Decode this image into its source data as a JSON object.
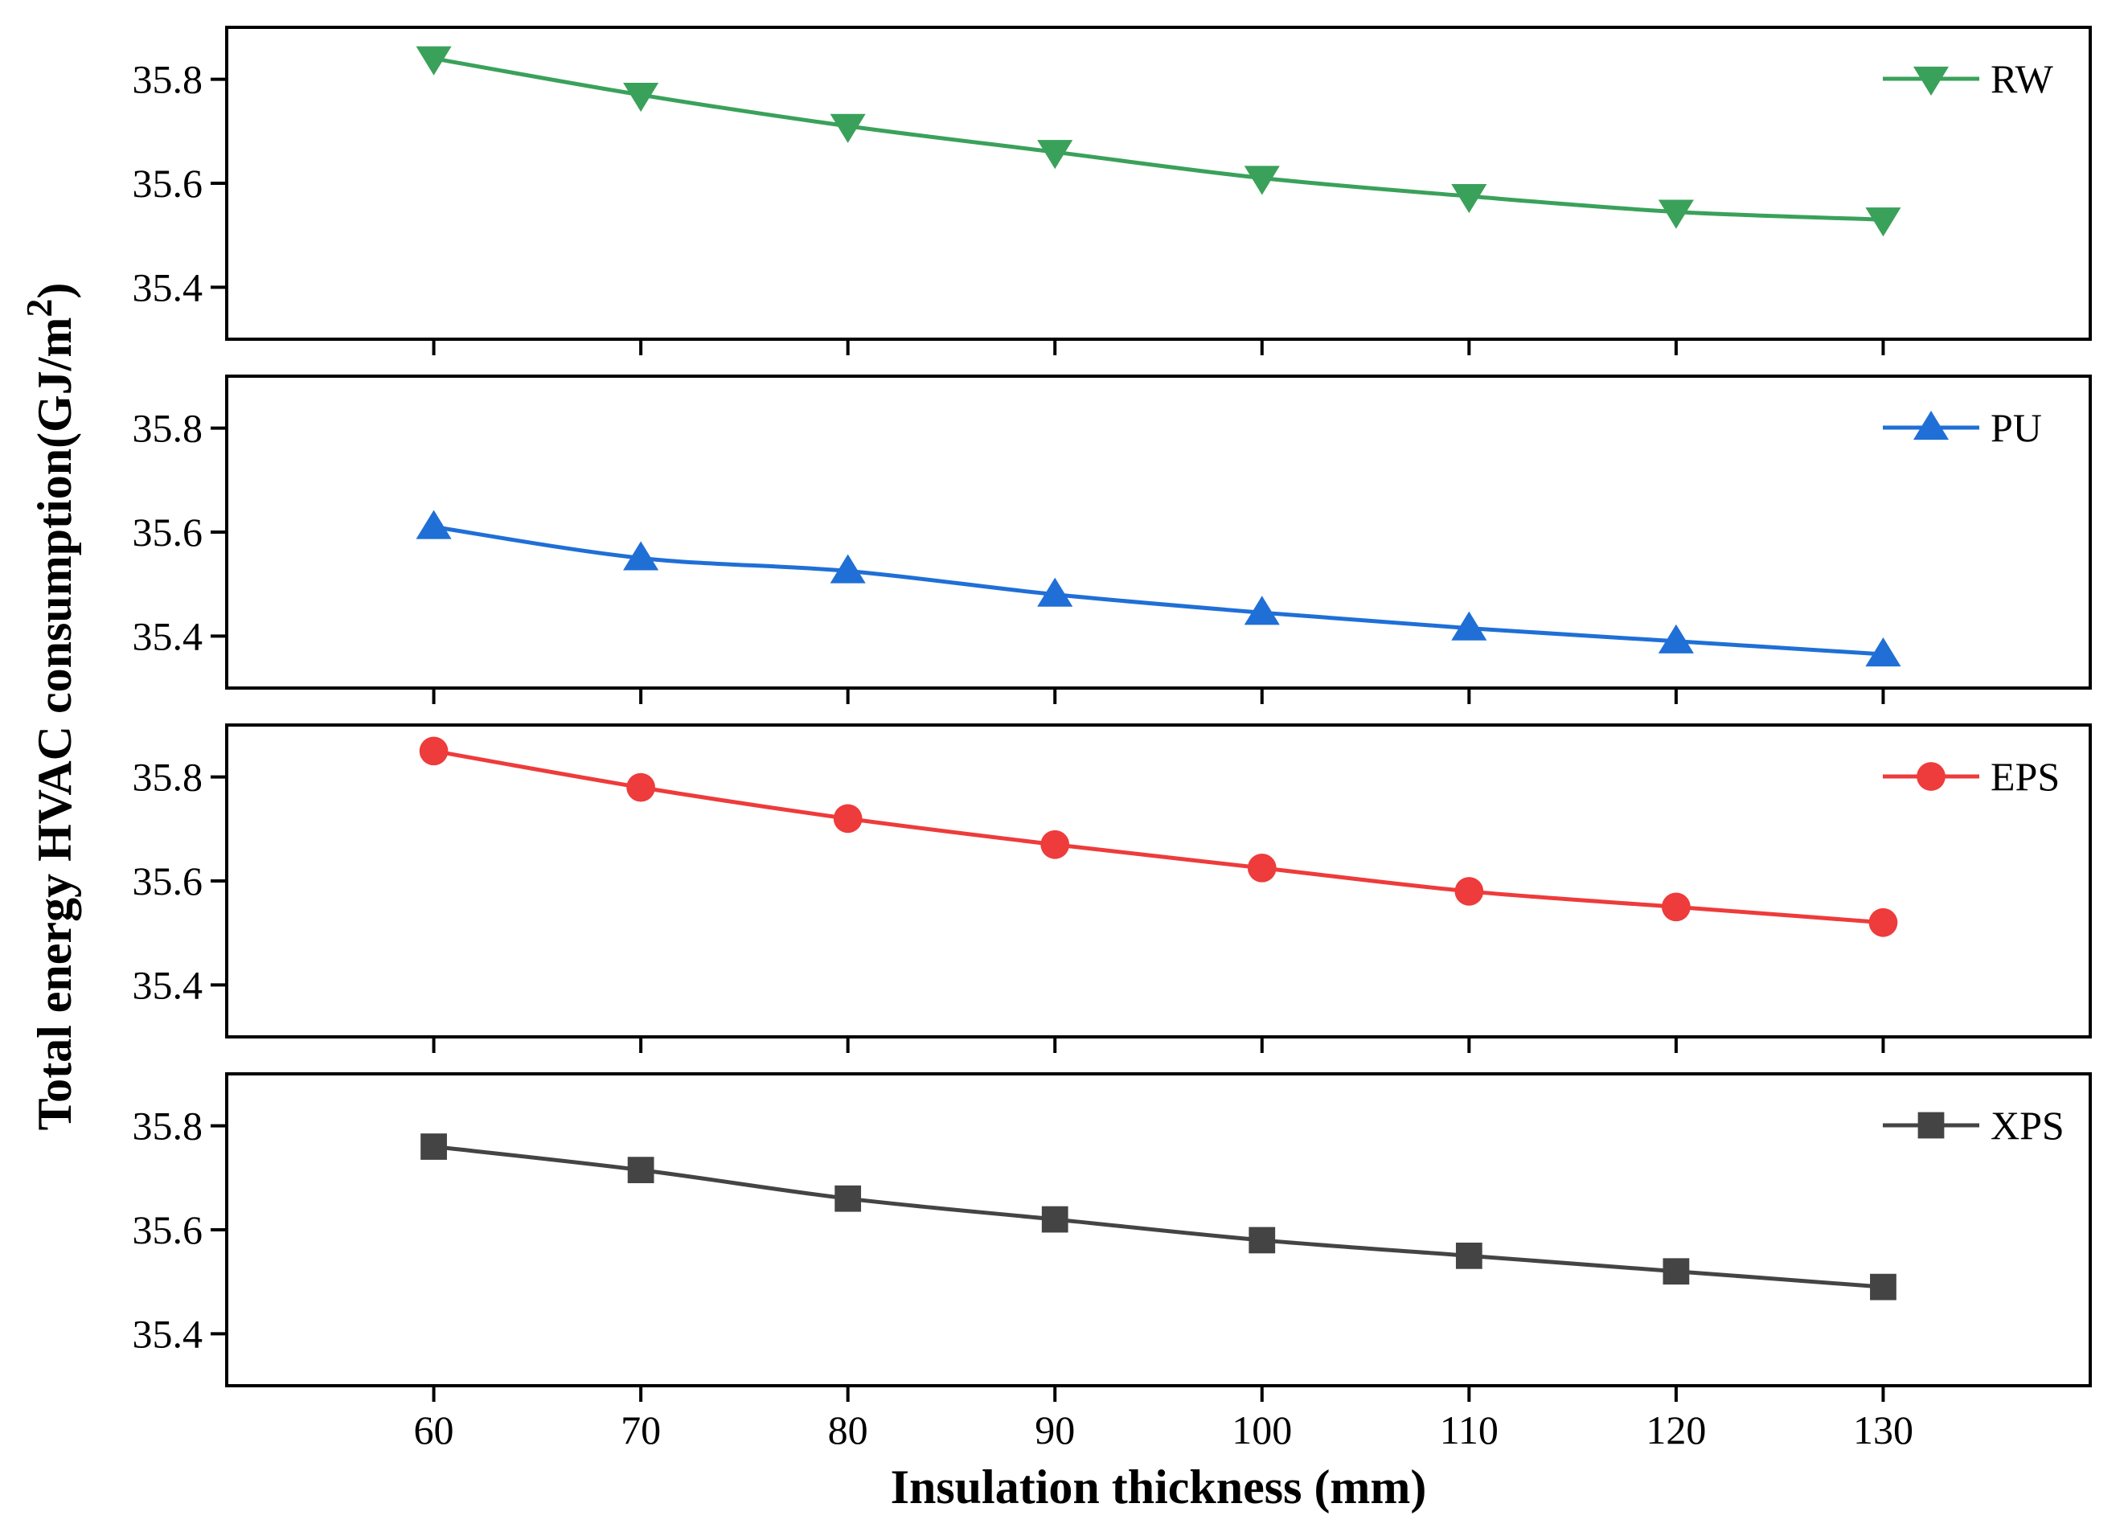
{
  "chart_data": {
    "type": "line",
    "layout": "four stacked panels sharing one x axis",
    "xlabel": "Insulation thickness (mm)",
    "ylabel": {
      "text": "Total energy HVAC consumption(GJ/m",
      "superscript": "2",
      "closing": ")"
    },
    "x": [
      60,
      70,
      80,
      90,
      100,
      110,
      120,
      130
    ],
    "x_ticks": [
      "60",
      "70",
      "80",
      "90",
      "100",
      "110",
      "120",
      "130"
    ],
    "xlim": [
      50,
      140
    ],
    "ylim": [
      35.3,
      35.9
    ],
    "y_ticks": [
      "35.4",
      "35.6",
      "35.8"
    ],
    "grid": false,
    "legend_position": "top-right of each panel",
    "series": [
      {
        "name": "RW",
        "color": "#3aa15a",
        "marker": "triangle-down",
        "values": [
          35.84,
          35.77,
          35.71,
          35.66,
          35.61,
          35.575,
          35.545,
          35.53
        ]
      },
      {
        "name": "PU",
        "color": "#1f6fd6",
        "marker": "triangle-up",
        "values": [
          35.61,
          35.55,
          35.525,
          35.48,
          35.445,
          35.415,
          35.39,
          35.365
        ]
      },
      {
        "name": "EPS",
        "color": "#ee3b3b",
        "marker": "circle",
        "values": [
          35.85,
          35.78,
          35.72,
          35.67,
          35.625,
          35.58,
          35.55,
          35.52
        ]
      },
      {
        "name": "XPS",
        "color": "#444444",
        "marker": "square",
        "values": [
          35.76,
          35.715,
          35.66,
          35.62,
          35.58,
          35.55,
          35.52,
          35.49
        ]
      }
    ]
  }
}
